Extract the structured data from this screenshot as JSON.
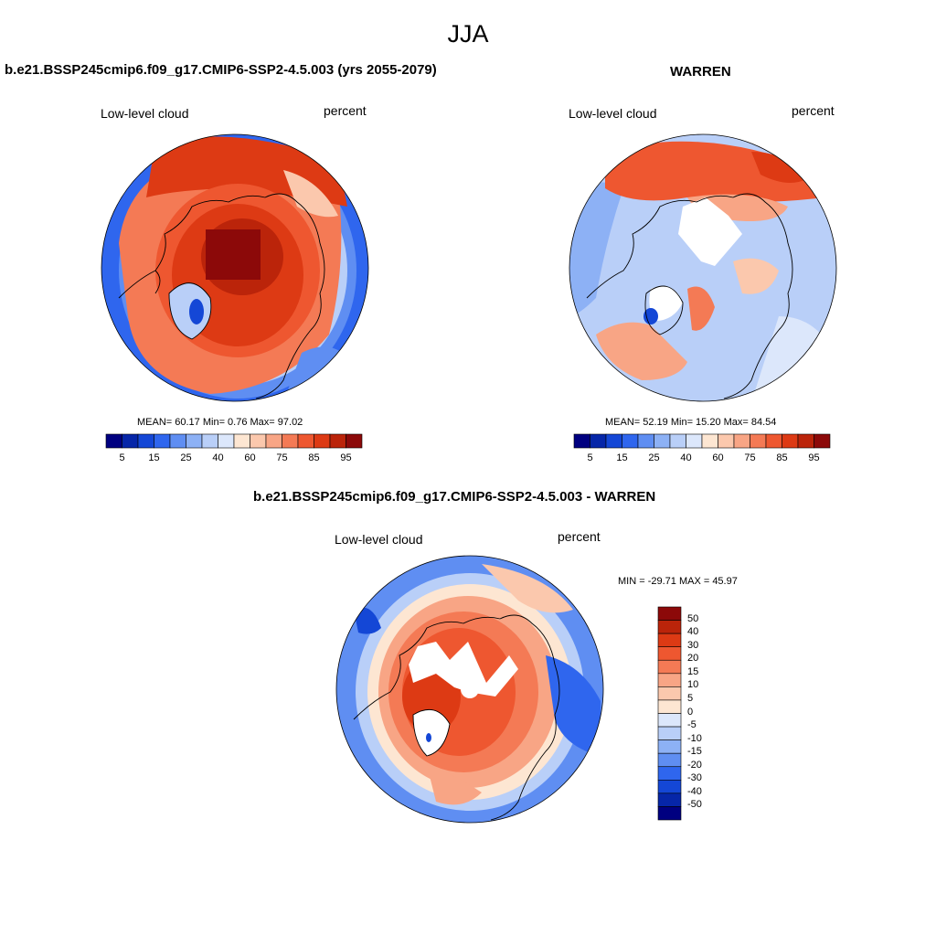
{
  "page_title": "JJA",
  "panels": [
    {
      "title": "b.e21.BSSP245cmip6.f09_g17.CMIP6-SSP2-4.5.003 (yrs 2055-2079)",
      "left_label": "Low-level cloud",
      "right_label": "percent",
      "stats": "MEAN=  60.17  Min=   0.76  Max=  97.02"
    },
    {
      "title": "WARREN",
      "left_label": "Low-level cloud",
      "right_label": "percent",
      "stats": "MEAN=  52.19  Min=  15.20  Max=  84.54"
    },
    {
      "title": "b.e21.BSSP245cmip6.f09_g17.CMIP6-SSP2-4.5.003 - WARREN",
      "left_label": "Low-level cloud",
      "right_label": "percent",
      "stats": "MIN = -29.71 MAX =  45.97"
    }
  ],
  "colorbar_abs": {
    "colors": [
      "#000080",
      "#0626a8",
      "#1447d6",
      "#2f66ee",
      "#5f8ef2",
      "#8db1f5",
      "#b9cff8",
      "#dce7fb",
      "#fde6d2",
      "#fbc8ad",
      "#f8a585",
      "#f47a55",
      "#ee5730",
      "#dd3a14",
      "#bb240a",
      "#8c0909"
    ],
    "tick_labels": [
      "5",
      "15",
      "25",
      "40",
      "60",
      "75",
      "85",
      "95"
    ]
  },
  "colorbar_diff": {
    "colors": [
      "#8c0909",
      "#bb240a",
      "#dd3a14",
      "#ee5730",
      "#f47a55",
      "#f8a585",
      "#fbc8ad",
      "#fde6d2",
      "#dce7fb",
      "#b9cff8",
      "#8db1f5",
      "#5f8ef2",
      "#2f66ee",
      "#1447d6",
      "#0626a8",
      "#000080"
    ],
    "tick_labels": [
      "50",
      "40",
      "30",
      "20",
      "15",
      "10",
      "5",
      "0",
      "-5",
      "-10",
      "-15",
      "-20",
      "-30",
      "-40",
      "-50"
    ]
  },
  "land_color": "#000000"
}
